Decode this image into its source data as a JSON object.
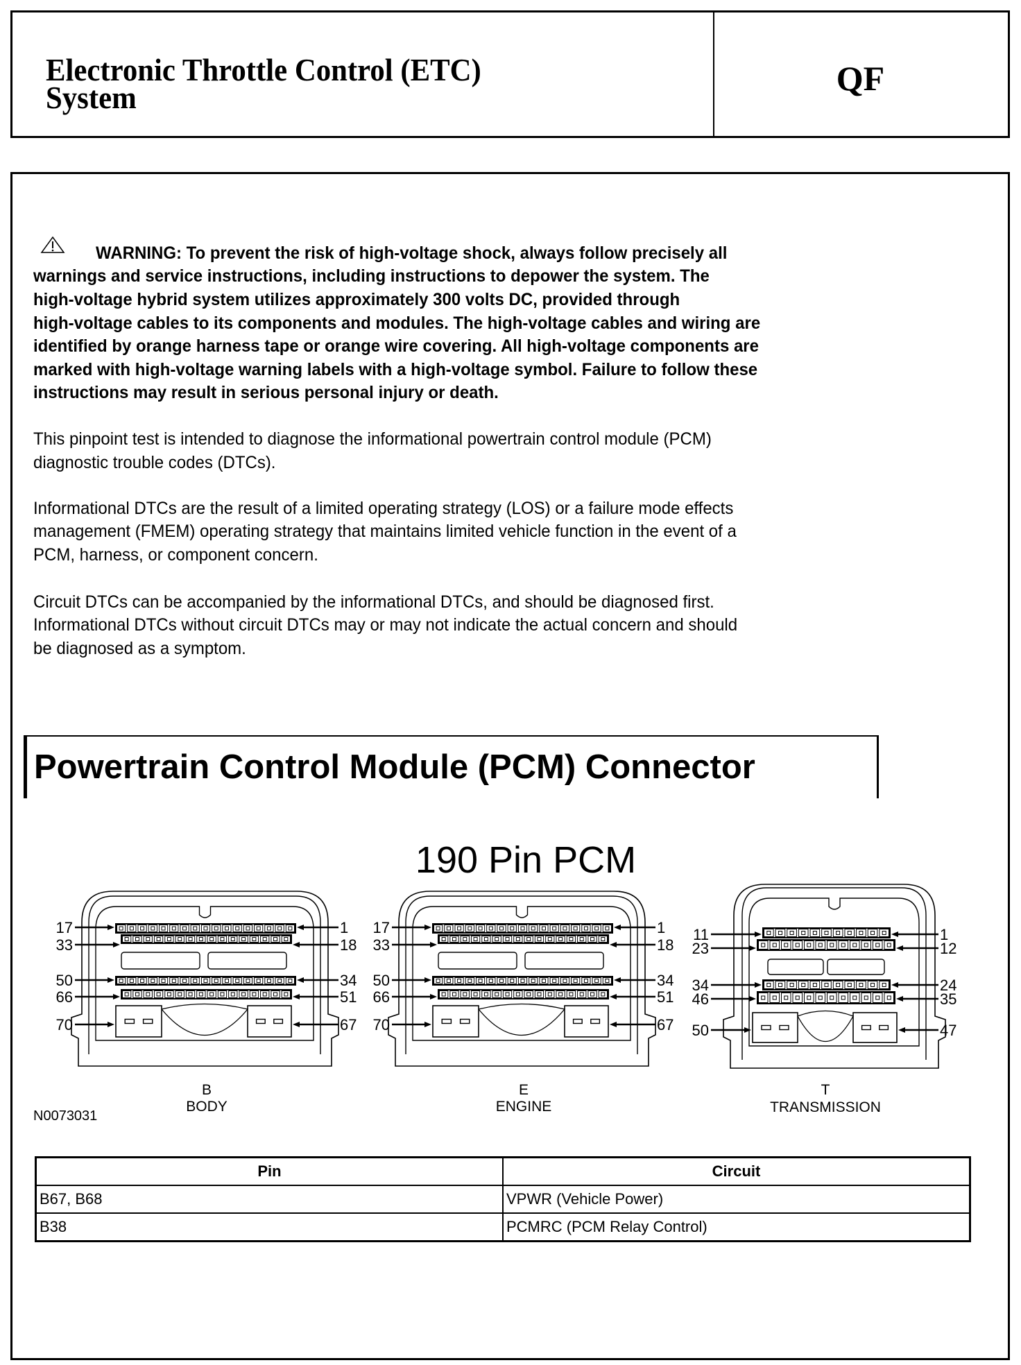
{
  "header": {
    "title_lines": [
      "Electronic Throttle Control (ETC)",
      "System"
    ],
    "code": "QF"
  },
  "warning": {
    "icon": "warning-triangle-icon",
    "lines": [
      "WARNING: To prevent the risk of high-voltage shock, always follow precisely all",
      "warnings and service instructions, including instructions to depower the system. The",
      "high-voltage hybrid system utilizes approximately 300 volts DC, provided through",
      "high-voltage cables to its components and modules. The high-voltage cables and wiring are",
      "identified by orange harness tape or orange wire covering. All high-voltage components are",
      "marked with high-voltage warning labels with a high-voltage symbol. Failure to follow these",
      "instructions may result in serious personal injury or death."
    ]
  },
  "paragraphs": [
    [
      "This pinpoint test is intended to diagnose the informational powertrain control module (PCM)",
      "diagnostic trouble codes (DTCs)."
    ],
    [
      "Informational DTCs are the result of a limited operating strategy (LOS) or a failure mode effects",
      "management (FMEM) operating strategy that maintains limited vehicle function in the event of a",
      "PCM, harness, or component concern."
    ],
    [
      "Circuit DTCs can be accompanied by the informational DTCs, and should be diagnosed first.",
      "Informational DTCs without circuit DTCs may or may not indicate the actual concern and should",
      "be diagnosed as a symptom."
    ]
  ],
  "section_heading": "Powertrain Control Module (PCM) Connector",
  "diagram": {
    "title": "190 Pin PCM",
    "figure_id": "N0073031",
    "connectors": [
      {
        "letter": "B",
        "name": "BODY",
        "left_labels": [
          "17",
          "33",
          "50",
          "66",
          "70"
        ],
        "right_labels": [
          "1",
          "18",
          "34",
          "51",
          "67"
        ]
      },
      {
        "letter": "E",
        "name": "ENGINE",
        "left_labels": [
          "17",
          "33",
          "50",
          "66",
          "70"
        ],
        "right_labels": [
          "1",
          "18",
          "34",
          "51",
          "67"
        ]
      },
      {
        "letter": "T",
        "name": "TRANSMISSION",
        "left_labels": [
          "11",
          "23",
          "34",
          "46",
          "50"
        ],
        "right_labels": [
          "1",
          "12",
          "24",
          "35",
          "47"
        ]
      }
    ]
  },
  "table": {
    "headers": [
      "Pin",
      "Circuit"
    ],
    "rows": [
      [
        "B67, B68",
        "VPWR (Vehicle Power)"
      ],
      [
        "B38",
        "PCMRC (PCM Relay Control)"
      ]
    ]
  }
}
